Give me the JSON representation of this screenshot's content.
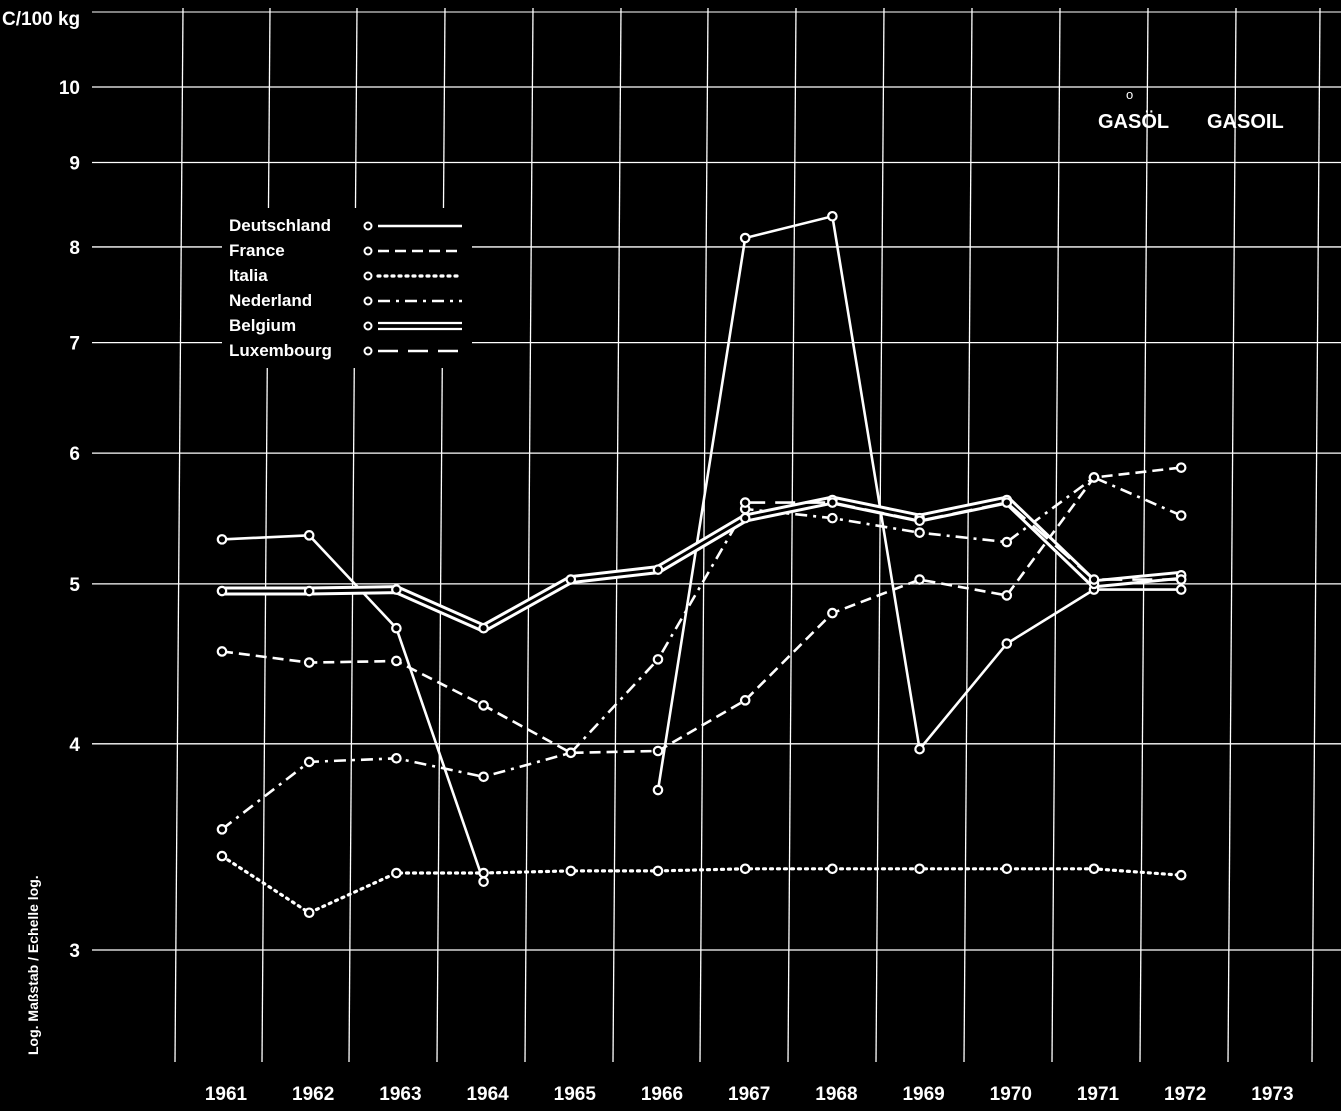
{
  "chart_data": {
    "type": "line",
    "yscale": "log",
    "ylim": [
      2.6,
      11
    ],
    "ylabel_unit": "C/100 kg",
    "side_note": "Log. Maßstab / Echelle log.",
    "titles": [
      "GASÖL",
      "GASOIL"
    ],
    "title_marker": "o",
    "y_ticks": [
      3,
      4,
      5,
      6,
      7,
      8,
      9,
      10
    ],
    "x": [
      "1961",
      "1962",
      "1963",
      "1964",
      "1965",
      "1966",
      "1967",
      "1968",
      "1969",
      "1970",
      "1971",
      "1972",
      "1973"
    ],
    "grid": true,
    "legend_position": "top-left",
    "series": [
      {
        "name": "Deutschland",
        "style": "solid",
        "values": [
          5.32,
          5.35,
          4.7,
          3.3,
          null,
          3.75,
          8.1,
          8.35,
          3.97,
          4.6,
          4.96,
          4.96,
          null
        ]
      },
      {
        "name": "France",
        "style": "dashed",
        "values": [
          4.55,
          4.48,
          4.49,
          4.22,
          3.95,
          3.96,
          4.25,
          4.8,
          5.03,
          4.92,
          5.8,
          5.88,
          null
        ]
      },
      {
        "name": "Italia",
        "style": "dotted",
        "values": [
          3.42,
          3.16,
          3.34,
          3.34,
          3.35,
          3.35,
          3.36,
          3.36,
          3.36,
          3.36,
          3.36,
          3.33,
          null
        ]
      },
      {
        "name": "Nederland",
        "style": "dashdot",
        "values": [
          3.55,
          3.9,
          3.92,
          3.82,
          3.95,
          4.5,
          5.55,
          5.48,
          5.37,
          5.3,
          5.8,
          5.5,
          null
        ]
      },
      {
        "name": "Belgium",
        "style": "double",
        "values": [
          4.95,
          4.95,
          4.96,
          4.7,
          5.03,
          5.1,
          5.48,
          5.62,
          5.48,
          5.62,
          5.0,
          5.06,
          null
        ]
      },
      {
        "name": "Luxembourg",
        "style": "longdash",
        "values": [
          null,
          null,
          null,
          null,
          null,
          null,
          5.6,
          5.6,
          5.46,
          5.6,
          5.03,
          5.03,
          null
        ]
      }
    ]
  }
}
